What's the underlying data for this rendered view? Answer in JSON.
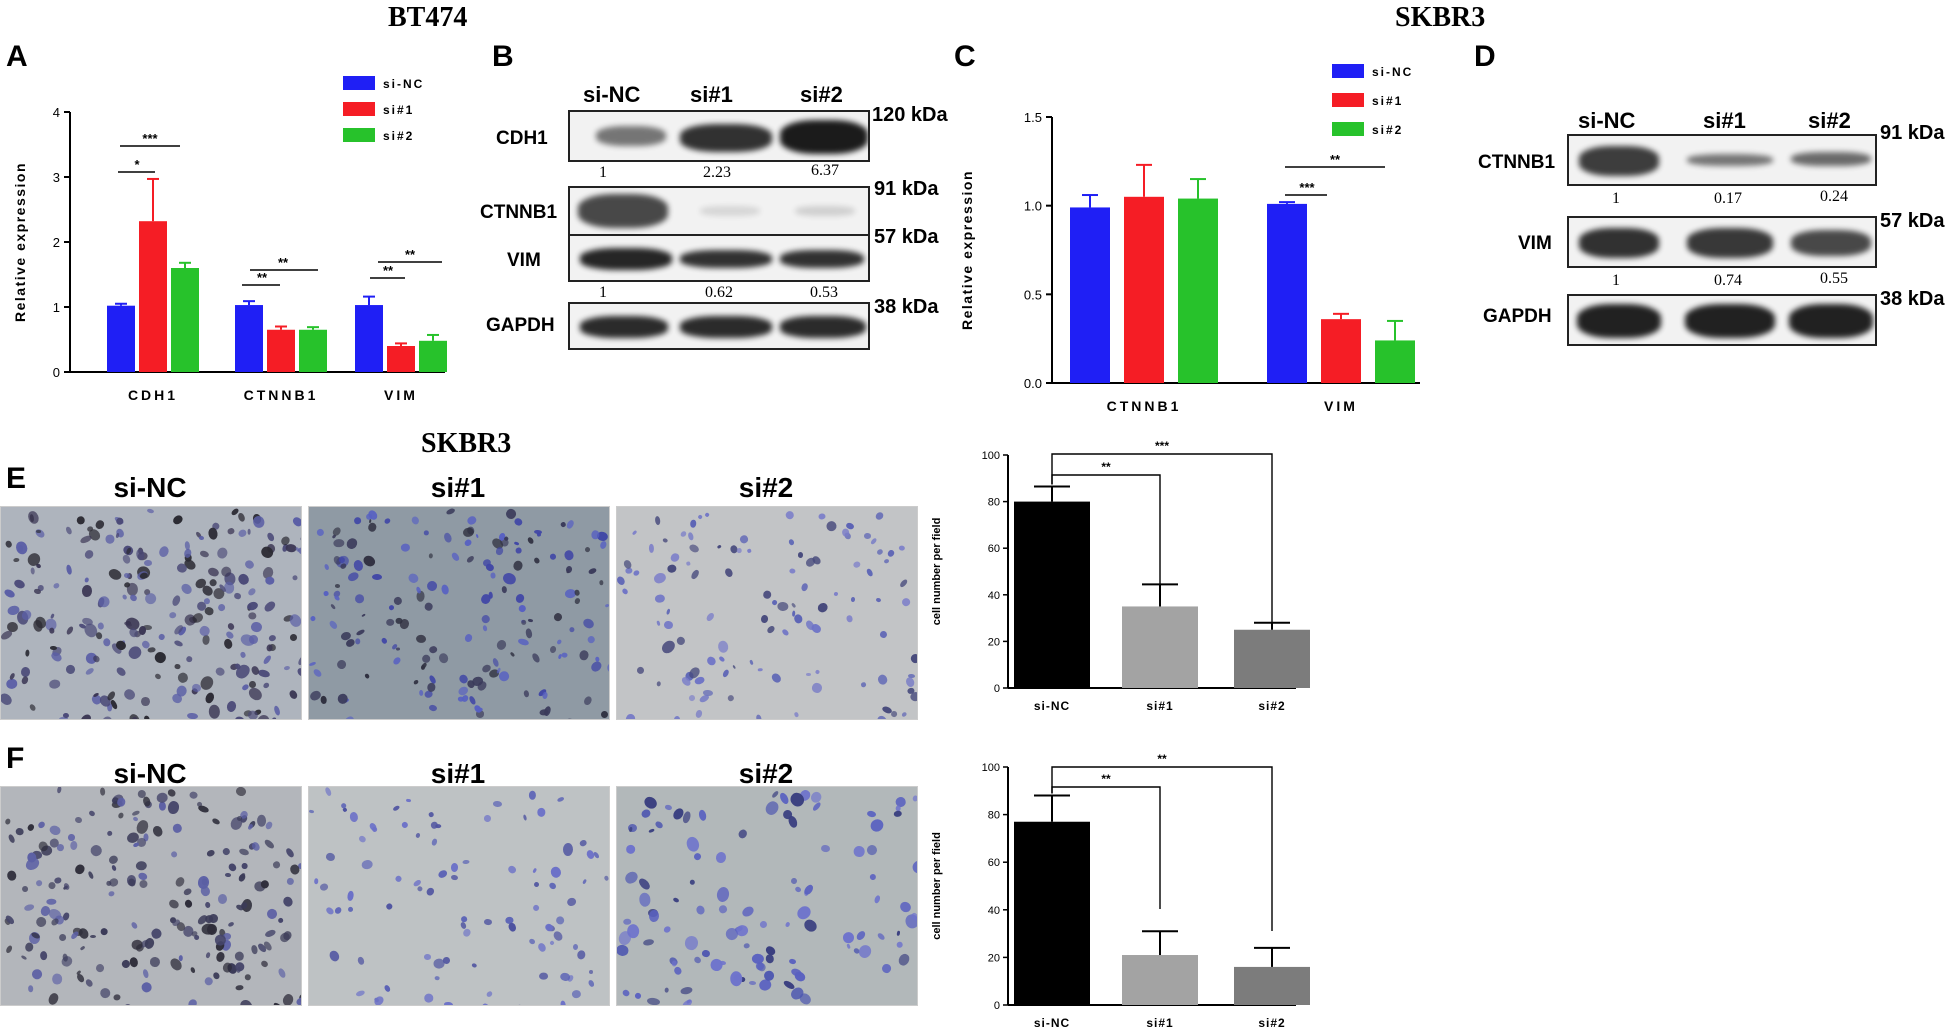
{
  "titles": {
    "bt474": "BT474",
    "skbr3_top": "SKBR3",
    "skbr3_mid": "SKBR3"
  },
  "panels": {
    "A": "A",
    "B": "B",
    "C": "C",
    "D": "D",
    "E": "E",
    "F": "F"
  },
  "colors": {
    "si_nc": "#1f1ff5",
    "si1": "#f51d25",
    "si2": "#27c22b",
    "black": "#000000",
    "gray1": "#a3a3a3",
    "gray2": "#7c7c7c"
  },
  "blotB": {
    "lanes": [
      "si-NC",
      "si#1",
      "si#2"
    ],
    "rows": [
      "CDH1",
      "CTNNB1",
      "VIM",
      "GAPDH"
    ],
    "kda": [
      "120 kDa",
      "91 kDa",
      "57 kDa",
      "38 kDa"
    ],
    "cdh1_quant": [
      "1",
      "2.23",
      "6.37"
    ],
    "vim_quant": [
      "1",
      "0.62",
      "0.53"
    ]
  },
  "blotD": {
    "lanes": [
      "si-NC",
      "si#1",
      "si#2"
    ],
    "rows": [
      "CTNNB1",
      "VIM",
      "GAPDH"
    ],
    "kda": [
      "91 kDa",
      "57 kDa",
      "38 kDa"
    ],
    "ctnnb1_quant": [
      "1",
      "0.17",
      "0.24"
    ],
    "vim_quant": [
      "1",
      "0.74",
      "0.55"
    ]
  },
  "micrographs": {
    "E": [
      "si-NC",
      "si#1",
      "si#2"
    ],
    "F": [
      "si-NC",
      "si#1",
      "si#2"
    ]
  },
  "chart_data": [
    {
      "panel": "A",
      "type": "bar",
      "categories": [
        "CDH1",
        "CTNNB1",
        "VIM"
      ],
      "series": [
        {
          "name": "si-NC",
          "color": "#1f1ff5",
          "values": [
            1.02,
            1.03,
            1.03
          ],
          "errors": [
            0.03,
            0.06,
            0.13
          ]
        },
        {
          "name": "si#1",
          "color": "#f51d25",
          "values": [
            2.32,
            0.65,
            0.4
          ],
          "errors": [
            0.65,
            0.05,
            0.04
          ]
        },
        {
          "name": "si#2",
          "color": "#27c22b",
          "values": [
            1.6,
            0.65,
            0.48
          ],
          "errors": [
            0.08,
            0.04,
            0.09
          ]
        }
      ],
      "ylabel": "Relative expression",
      "ylim": [
        0,
        4
      ],
      "yticks": [
        "0",
        "1",
        "2",
        "3",
        "4"
      ],
      "significance": [
        "***",
        "*",
        "**",
        "**",
        "**",
        "**"
      ],
      "legend": "top-right"
    },
    {
      "panel": "C",
      "type": "bar",
      "categories": [
        "CTNNB1",
        "VIM"
      ],
      "series": [
        {
          "name": "si-NC",
          "color": "#1f1ff5",
          "values": [
            0.99,
            1.01
          ],
          "errors": [
            0.07,
            0.01
          ]
        },
        {
          "name": "si#1",
          "color": "#f51d25",
          "values": [
            1.05,
            0.36
          ],
          "errors": [
            0.18,
            0.03
          ]
        },
        {
          "name": "si#2",
          "color": "#27c22b",
          "values": [
            1.04,
            0.24
          ],
          "errors": [
            0.11,
            0.11
          ]
        }
      ],
      "ylabel": "Relative expression",
      "ylim": [
        0,
        1.5
      ],
      "yticks": [
        "0.0",
        "0.5",
        "1.0",
        "1.5"
      ],
      "significance": [
        "**",
        "***"
      ],
      "legend": "top-right"
    },
    {
      "panel": "E",
      "type": "bar",
      "categories": [
        "si-NC",
        "si#1",
        "si#2"
      ],
      "values": [
        80,
        35,
        25
      ],
      "errors": [
        6.5,
        9.5,
        3
      ],
      "colors": [
        "#000000",
        "#a3a3a3",
        "#7c7c7c"
      ],
      "ylabel": "cell number per field",
      "ylim": [
        0,
        100
      ],
      "yticks": [
        "0",
        "20",
        "40",
        "60",
        "80",
        "100"
      ],
      "significance": [
        "**",
        "***"
      ]
    },
    {
      "panel": "F",
      "type": "bar",
      "categories": [
        "si-NC",
        "si#1",
        "si#2"
      ],
      "values": [
        77,
        21,
        16
      ],
      "errors": [
        11,
        10,
        8
      ],
      "colors": [
        "#000000",
        "#a3a3a3",
        "#7c7c7c"
      ],
      "ylabel": "cell number per field",
      "ylim": [
        0,
        100
      ],
      "yticks": [
        "0",
        "20",
        "40",
        "60",
        "80",
        "100"
      ],
      "significance": [
        "**",
        "**"
      ]
    }
  ]
}
